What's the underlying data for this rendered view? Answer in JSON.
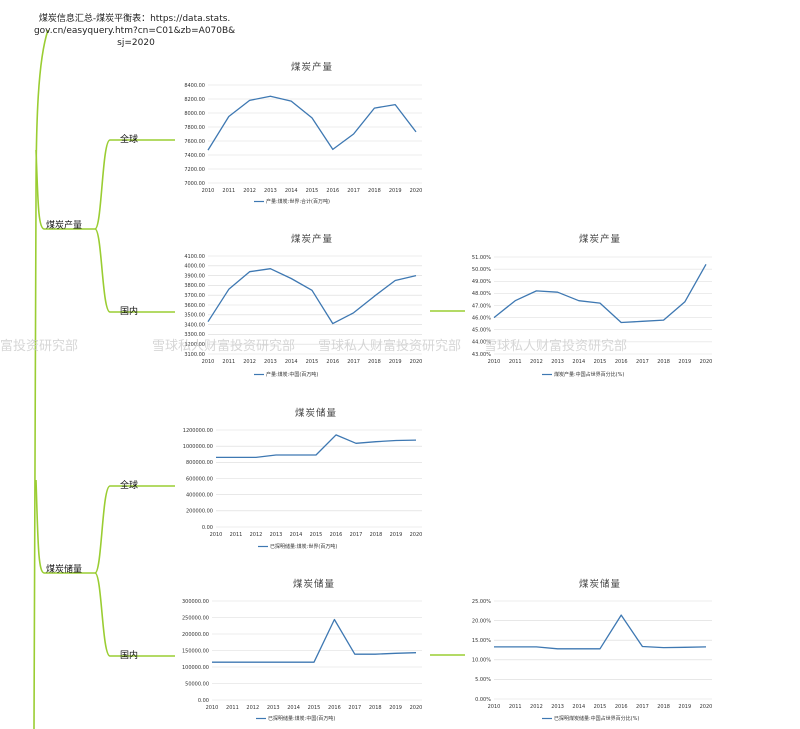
{
  "source_note": [
    "煤炭信息汇总-煤炭平衡表：https://data.stats.",
    "gov.cn/easyquery.htm?cn=C01&zb=A070B&",
    "sj=2020"
  ],
  "branches": {
    "production": "煤炭产量",
    "reserves": "煤炭储量",
    "global": "全球",
    "domestic": "国内"
  },
  "watermark": [
    "富投资研究部",
    "雪球私人财富投资研究部",
    "雪球私人财富投资研究部",
    "雪球私人财富投资研究部"
  ],
  "colors": {
    "branch_line": "#9acd32",
    "series": "#3e78b2",
    "grid": "#d9d9d9"
  },
  "chart_data": [
    {
      "id": "global-production",
      "type": "line",
      "title": "煤炭产量",
      "legend": "产量:煤炭:世界:合计(百万吨)",
      "x": [
        "2010",
        "2011",
        "2012",
        "2013",
        "2014",
        "2015",
        "2016",
        "2017",
        "2018",
        "2019",
        "2020"
      ],
      "values": [
        7470,
        7950,
        8180,
        8240,
        8170,
        7930,
        7480,
        7700,
        8070,
        8120,
        7730
      ],
      "ylim": [
        7000,
        8400
      ],
      "yticks": [
        "7000.00",
        "7200.00",
        "7400.00",
        "7600.00",
        "7800.00",
        "8000.00",
        "8200.00",
        "8400.00"
      ]
    },
    {
      "id": "domestic-production",
      "type": "line",
      "title": "煤炭产量",
      "legend": "产量:煤炭:中国(百万吨)",
      "x": [
        "2010",
        "2011",
        "2012",
        "2013",
        "2014",
        "2015",
        "2016",
        "2017",
        "2018",
        "2019",
        "2020"
      ],
      "values": [
        3430,
        3760,
        3940,
        3970,
        3870,
        3750,
        3410,
        3520,
        3690,
        3850,
        3900
      ],
      "ylim": [
        3100,
        4100
      ],
      "yticks": [
        "3100.00",
        "3200.00",
        "3300.00",
        "3400.00",
        "3500.00",
        "3600.00",
        "3700.00",
        "3800.00",
        "3900.00",
        "4000.00",
        "4100.00"
      ]
    },
    {
      "id": "domestic-production-share",
      "type": "line",
      "title": "煤炭产量",
      "legend": "煤炭产量:中国占世界百分比(%)",
      "x": [
        "2010",
        "2011",
        "2012",
        "2013",
        "2014",
        "2015",
        "2016",
        "2017",
        "2018",
        "2019",
        "2020"
      ],
      "values": [
        46.0,
        47.4,
        48.2,
        48.1,
        47.4,
        47.2,
        45.6,
        45.7,
        45.8,
        47.3,
        50.4
      ],
      "ylim": [
        43,
        51
      ],
      "yticks": [
        "43.00%",
        "44.00%",
        "45.00%",
        "46.00%",
        "47.00%",
        "48.00%",
        "49.00%",
        "50.00%",
        "51.00%"
      ]
    },
    {
      "id": "global-reserves",
      "type": "line",
      "title": "煤炭储量",
      "legend": "已探明储量:煤炭:世界(百万吨)",
      "x": [
        "2010",
        "2011",
        "2012",
        "2013",
        "2014",
        "2015",
        "2016",
        "2017",
        "2018",
        "2019",
        "2020"
      ],
      "values": [
        861000,
        861000,
        861000,
        891000,
        891000,
        891000,
        1139000,
        1035000,
        1055000,
        1070000,
        1075000
      ],
      "ylim": [
        0,
        1200000
      ],
      "yticks": [
        "0.00",
        "200000.00",
        "400000.00",
        "600000.00",
        "800000.00",
        "1000000.00",
        "1200000.00"
      ]
    },
    {
      "id": "domestic-reserves",
      "type": "line",
      "title": "煤炭储量",
      "legend": "已探明储量:煤炭:中国(百万吨)",
      "x": [
        "2010",
        "2011",
        "2012",
        "2013",
        "2014",
        "2015",
        "2016",
        "2017",
        "2018",
        "2019",
        "2020"
      ],
      "values": [
        114500,
        114500,
        114500,
        114500,
        114500,
        114500,
        244000,
        138800,
        138800,
        141600,
        143200
      ],
      "ylim": [
        0,
        300000
      ],
      "yticks": [
        "0.00",
        "50000.00",
        "100000.00",
        "150000.00",
        "200000.00",
        "250000.00",
        "300000.00"
      ]
    },
    {
      "id": "domestic-reserves-share",
      "type": "line",
      "title": "煤炭储量",
      "legend": "已探明煤炭储量:中国占世界百分比(%)",
      "x": [
        "2010",
        "2011",
        "2012",
        "2013",
        "2014",
        "2015",
        "2016",
        "2017",
        "2018",
        "2019",
        "2020"
      ],
      "values": [
        13.3,
        13.3,
        13.3,
        12.8,
        12.8,
        12.8,
        21.4,
        13.4,
        13.1,
        13.2,
        13.3
      ],
      "ylim": [
        0,
        25
      ],
      "yticks": [
        "0.00%",
        "5.00%",
        "10.00%",
        "15.00%",
        "20.00%",
        "25.00%"
      ]
    }
  ]
}
